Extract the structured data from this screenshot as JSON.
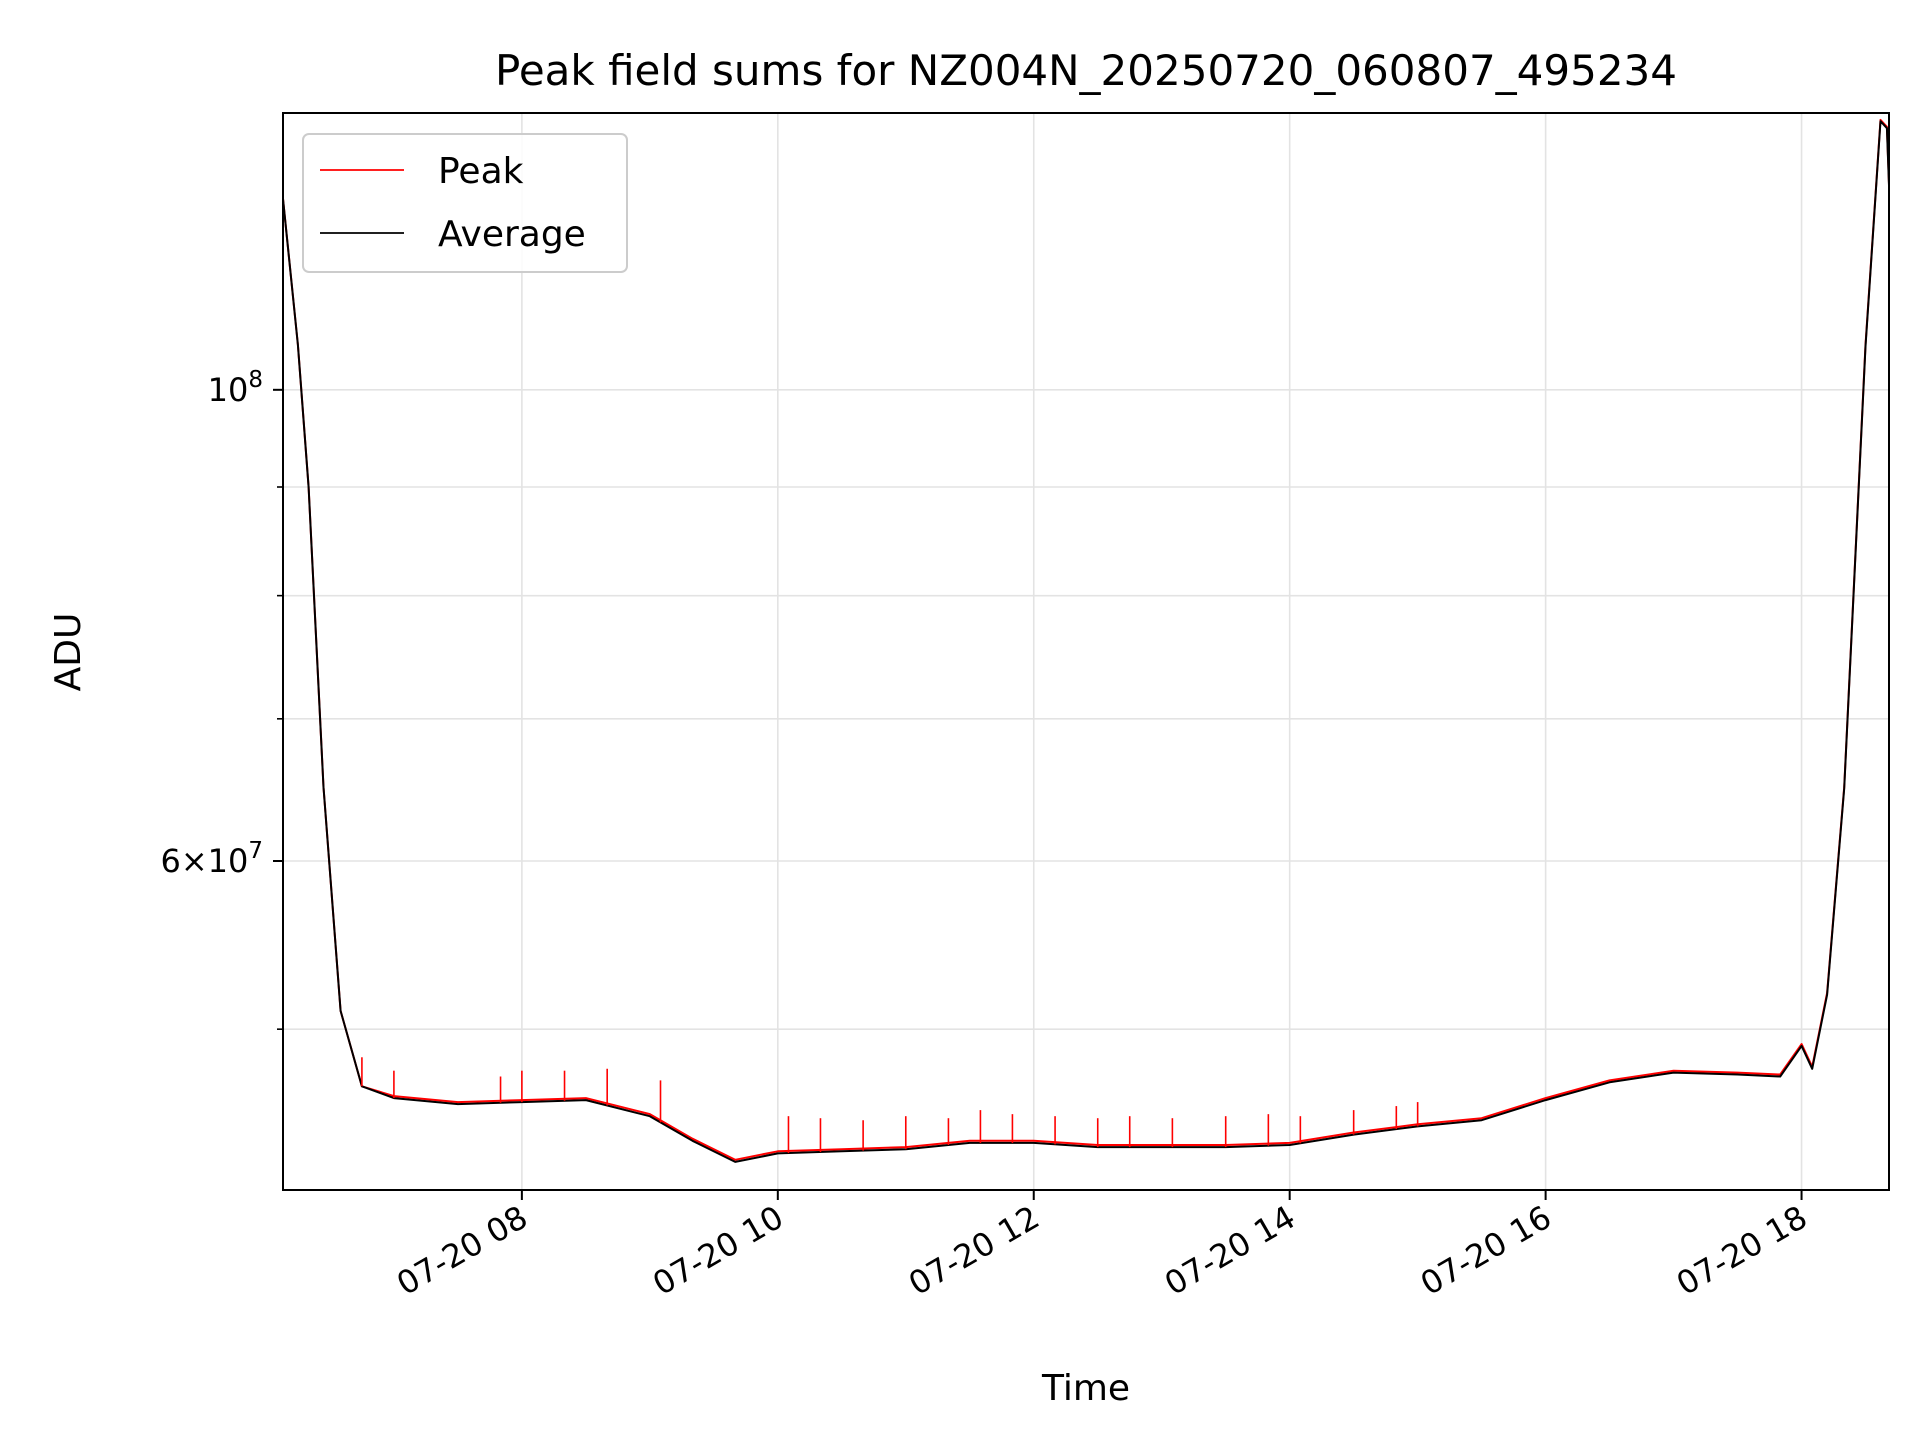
{
  "chart_data": {
    "type": "line",
    "title": "Peak field sums for NZ004N_20250720_060807_495234",
    "xlabel": "Time",
    "ylabel": "ADU",
    "y_scale": "log",
    "x_range": [
      "2025-07-20 06:08",
      "2025-07-20 18:41"
    ],
    "ylim": [
      42000000,
      135000000
    ],
    "x_ticks": [
      {
        "t": "2025-07-20 08:00",
        "label": "07-20 08"
      },
      {
        "t": "2025-07-20 10:00",
        "label": "07-20 10"
      },
      {
        "t": "2025-07-20 12:00",
        "label": "07-20 12"
      },
      {
        "t": "2025-07-20 14:00",
        "label": "07-20 14"
      },
      {
        "t": "2025-07-20 16:00",
        "label": "07-20 16"
      },
      {
        "t": "2025-07-20 18:00",
        "label": "07-20 18"
      }
    ],
    "y_major_ticks": [
      {
        "value": 100000000,
        "base": "10",
        "exp": "8"
      },
      {
        "value": 60000000,
        "mantissa": "6",
        "base": "10",
        "exp": "7"
      }
    ],
    "y_minor_ticks": [
      50000000,
      70000000,
      80000000,
      90000000
    ],
    "grid": true,
    "legend_position": "top-left",
    "series": [
      {
        "name": "Peak",
        "color": "#ff0000",
        "points": [
          [
            "2025-07-20 06:08",
            123000000
          ],
          [
            "2025-07-20 06:15",
            105000000
          ],
          [
            "2025-07-20 06:20",
            90000000
          ],
          [
            "2025-07-20 06:27",
            65000000
          ],
          [
            "2025-07-20 06:35",
            51000000
          ],
          [
            "2025-07-20 06:45",
            47000000
          ],
          [
            "2025-07-20 07:00",
            46500000
          ],
          [
            "2025-07-20 07:30",
            46200000
          ],
          [
            "2025-07-20 08:00",
            46300000
          ],
          [
            "2025-07-20 08:30",
            46400000
          ],
          [
            "2025-07-20 09:00",
            45600000
          ],
          [
            "2025-07-20 09:20",
            44400000
          ],
          [
            "2025-07-20 09:40",
            43400000
          ],
          [
            "2025-07-20 10:00",
            43800000
          ],
          [
            "2025-07-20 10:30",
            43900000
          ],
          [
            "2025-07-20 11:00",
            44000000
          ],
          [
            "2025-07-20 11:30",
            44300000
          ],
          [
            "2025-07-20 12:00",
            44300000
          ],
          [
            "2025-07-20 12:30",
            44100000
          ],
          [
            "2025-07-20 13:00",
            44100000
          ],
          [
            "2025-07-20 13:30",
            44100000
          ],
          [
            "2025-07-20 14:00",
            44200000
          ],
          [
            "2025-07-20 14:30",
            44700000
          ],
          [
            "2025-07-20 15:00",
            45100000
          ],
          [
            "2025-07-20 15:30",
            45400000
          ],
          [
            "2025-07-20 16:00",
            46400000
          ],
          [
            "2025-07-20 16:30",
            47300000
          ],
          [
            "2025-07-20 17:00",
            47800000
          ],
          [
            "2025-07-20 17:30",
            47700000
          ],
          [
            "2025-07-20 17:50",
            47600000
          ],
          [
            "2025-07-20 18:00",
            49200000
          ],
          [
            "2025-07-20 18:05",
            48000000
          ],
          [
            "2025-07-20 18:12",
            52000000
          ],
          [
            "2025-07-20 18:20",
            65000000
          ],
          [
            "2025-07-20 18:30",
            105000000
          ],
          [
            "2025-07-20 18:37",
            134000000
          ],
          [
            "2025-07-20 18:40",
            133000000
          ],
          [
            "2025-07-20 18:41",
            125000000
          ]
        ],
        "spikes": [
          [
            "2025-07-20 06:45",
            48500000
          ],
          [
            "2025-07-20 07:00",
            47800000
          ],
          [
            "2025-07-20 07:50",
            47500000
          ],
          [
            "2025-07-20 08:00",
            47800000
          ],
          [
            "2025-07-20 08:20",
            47800000
          ],
          [
            "2025-07-20 08:40",
            47900000
          ],
          [
            "2025-07-20 09:05",
            47300000
          ],
          [
            "2025-07-20 10:05",
            45500000
          ],
          [
            "2025-07-20 10:20",
            45400000
          ],
          [
            "2025-07-20 10:40",
            45300000
          ],
          [
            "2025-07-20 11:00",
            45500000
          ],
          [
            "2025-07-20 11:20",
            45400000
          ],
          [
            "2025-07-20 11:35",
            45800000
          ],
          [
            "2025-07-20 11:50",
            45600000
          ],
          [
            "2025-07-20 12:10",
            45500000
          ],
          [
            "2025-07-20 12:30",
            45400000
          ],
          [
            "2025-07-20 12:45",
            45500000
          ],
          [
            "2025-07-20 13:05",
            45400000
          ],
          [
            "2025-07-20 13:30",
            45500000
          ],
          [
            "2025-07-20 13:50",
            45600000
          ],
          [
            "2025-07-20 14:05",
            45500000
          ],
          [
            "2025-07-20 14:30",
            45800000
          ],
          [
            "2025-07-20 14:50",
            46000000
          ],
          [
            "2025-07-20 15:00",
            46200000
          ]
        ]
      },
      {
        "name": "Average",
        "color": "#000000",
        "points": [
          [
            "2025-07-20 06:08",
            123000000
          ],
          [
            "2025-07-20 06:15",
            105000000
          ],
          [
            "2025-07-20 06:20",
            90000000
          ],
          [
            "2025-07-20 06:27",
            65000000
          ],
          [
            "2025-07-20 06:35",
            51000000
          ],
          [
            "2025-07-20 06:45",
            47000000
          ],
          [
            "2025-07-20 07:00",
            46400000
          ],
          [
            "2025-07-20 07:30",
            46100000
          ],
          [
            "2025-07-20 08:00",
            46200000
          ],
          [
            "2025-07-20 08:30",
            46300000
          ],
          [
            "2025-07-20 09:00",
            45500000
          ],
          [
            "2025-07-20 09:20",
            44300000
          ],
          [
            "2025-07-20 09:40",
            43300000
          ],
          [
            "2025-07-20 10:00",
            43700000
          ],
          [
            "2025-07-20 10:30",
            43800000
          ],
          [
            "2025-07-20 11:00",
            43900000
          ],
          [
            "2025-07-20 11:30",
            44200000
          ],
          [
            "2025-07-20 12:00",
            44200000
          ],
          [
            "2025-07-20 12:30",
            44000000
          ],
          [
            "2025-07-20 13:00",
            44000000
          ],
          [
            "2025-07-20 13:30",
            44000000
          ],
          [
            "2025-07-20 14:00",
            44100000
          ],
          [
            "2025-07-20 14:30",
            44600000
          ],
          [
            "2025-07-20 15:00",
            45000000
          ],
          [
            "2025-07-20 15:30",
            45300000
          ],
          [
            "2025-07-20 16:00",
            46300000
          ],
          [
            "2025-07-20 16:30",
            47200000
          ],
          [
            "2025-07-20 17:00",
            47700000
          ],
          [
            "2025-07-20 17:30",
            47600000
          ],
          [
            "2025-07-20 17:50",
            47500000
          ],
          [
            "2025-07-20 18:00",
            49100000
          ],
          [
            "2025-07-20 18:05",
            47900000
          ],
          [
            "2025-07-20 18:12",
            51900000
          ],
          [
            "2025-07-20 18:20",
            64900000
          ],
          [
            "2025-07-20 18:30",
            104800000
          ],
          [
            "2025-07-20 18:37",
            133800000
          ],
          [
            "2025-07-20 18:40",
            132800000
          ],
          [
            "2025-07-20 18:41",
            124800000
          ]
        ]
      }
    ]
  }
}
